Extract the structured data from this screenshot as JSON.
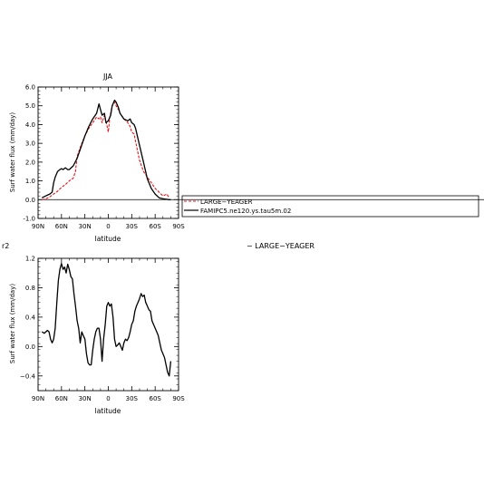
{
  "chart_data": [
    {
      "type": "line",
      "title": "JJA",
      "xlabel": "latitude",
      "ylabel": "Surf water flux (mm/day)",
      "xlim": [
        90,
        -90
      ],
      "ylim": [
        -1.0,
        6.0
      ],
      "x_ticks": [
        90,
        60,
        30,
        0,
        -30,
        -60,
        -90
      ],
      "x_tick_labels": [
        "90N",
        "60N",
        "30N",
        "0",
        "30S",
        "60S",
        "90S"
      ],
      "y_ticks": [
        -1,
        0,
        1,
        2,
        3,
        4,
        5,
        6
      ],
      "y_tick_labels": [
        "-1.0",
        "0.0",
        "1.0",
        "2.0",
        "3.0",
        "4.0",
        "5.0",
        "6.0"
      ],
      "zero_line": true,
      "legend": {
        "placement": "right",
        "entries": [
          "LARGE−YEAGER",
          "FAMIPC5.ne120.ys.tau5m.02"
        ]
      },
      "series": [
        {
          "name": "LARGE−YEAGER",
          "color": "#e8141a",
          "dash": "dashed",
          "x": [
            85,
            80,
            75,
            70,
            65,
            60,
            55,
            50,
            45,
            42,
            40,
            35,
            30,
            25,
            20,
            15,
            12,
            10,
            8,
            5,
            3,
            0,
            -2,
            -5,
            -8,
            -10,
            -13,
            -15,
            -20,
            -25,
            -28,
            -30,
            -33,
            -35,
            -40,
            -45,
            -50,
            -55,
            -60,
            -65,
            -70,
            -75,
            -78
          ],
          "y": [
            0.0,
            0.05,
            0.15,
            0.3,
            0.45,
            0.65,
            0.8,
            1.0,
            1.15,
            1.5,
            2.3,
            2.9,
            3.4,
            3.8,
            4.1,
            4.4,
            4.3,
            4.4,
            4.1,
            4.5,
            4.2,
            3.6,
            4.4,
            5.0,
            5.2,
            5.0,
            4.8,
            4.6,
            4.3,
            4.1,
            3.9,
            3.6,
            3.5,
            3.1,
            2.1,
            1.5,
            1.2,
            0.9,
            0.6,
            0.4,
            0.2,
            0.3,
            0.1
          ]
        },
        {
          "name": "FAMIPC5.ne120.ys.tau5m.02",
          "color": "#000000",
          "dash": "solid",
          "x": [
            85,
            80,
            75,
            72,
            70,
            68,
            65,
            62,
            60,
            58,
            55,
            52,
            50,
            45,
            40,
            35,
            30,
            25,
            20,
            15,
            12,
            10,
            8,
            5,
            3,
            0,
            -3,
            -5,
            -8,
            -10,
            -13,
            -15,
            -20,
            -25,
            -28,
            -30,
            -33,
            -35,
            -40,
            -45,
            -50,
            -55,
            -60,
            -65,
            -70,
            -75,
            -78,
            -80
          ],
          "y": [
            0.1,
            0.2,
            0.3,
            0.4,
            0.9,
            1.2,
            1.5,
            1.6,
            1.65,
            1.6,
            1.7,
            1.6,
            1.6,
            1.8,
            2.2,
            2.8,
            3.4,
            3.9,
            4.3,
            4.6,
            5.1,
            4.8,
            4.5,
            4.6,
            4.1,
            4.2,
            4.5,
            5.0,
            5.3,
            5.2,
            4.9,
            4.6,
            4.3,
            4.2,
            4.3,
            4.1,
            4.0,
            3.8,
            2.9,
            2.0,
            1.1,
            0.6,
            0.3,
            0.1,
            0.05,
            0.02,
            0.0,
            0.0
          ]
        }
      ]
    },
    {
      "type": "line",
      "title_fragment": "r2",
      "title": "− LARGE−YEAGER",
      "xlabel": "latitude",
      "ylabel": "Surf water flux (mm/day)",
      "xlim": [
        90,
        -90
      ],
      "ylim": [
        -0.6,
        1.2
      ],
      "x_ticks": [
        90,
        60,
        30,
        0,
        -30,
        -60,
        -90
      ],
      "x_tick_labels": [
        "90N",
        "60N",
        "30N",
        "0",
        "30S",
        "60S",
        "90S"
      ],
      "y_ticks": [
        -0.4,
        0.0,
        0.4,
        0.8,
        1.2
      ],
      "y_tick_labels": [
        "−0.4",
        "0.0",
        "0.4",
        "0.8",
        "1.2"
      ],
      "series": [
        {
          "name": "",
          "color": "#000000",
          "dash": "solid",
          "x": [
            85,
            82,
            80,
            78,
            76,
            74,
            72,
            70,
            68,
            66,
            64,
            62,
            60,
            58,
            56,
            54,
            52,
            50,
            48,
            46,
            44,
            42,
            40,
            38,
            36,
            34,
            32,
            30,
            28,
            26,
            24,
            22,
            20,
            18,
            16,
            14,
            12,
            10,
            8,
            6,
            4,
            2,
            0,
            -2,
            -4,
            -6,
            -8,
            -10,
            -12,
            -14,
            -16,
            -18,
            -20,
            -22,
            -24,
            -26,
            -28,
            -30,
            -32,
            -34,
            -36,
            -38,
            -40,
            -42,
            -44,
            -46,
            -48,
            -50,
            -52,
            -54,
            -56,
            -58,
            -60,
            -62,
            -64,
            -66,
            -68,
            -70,
            -72,
            -74,
            -76,
            -78,
            -80
          ],
          "y": [
            0.2,
            0.18,
            0.2,
            0.22,
            0.2,
            0.1,
            0.05,
            0.1,
            0.25,
            0.6,
            0.9,
            1.05,
            1.13,
            1.05,
            1.08,
            1.0,
            1.12,
            1.05,
            0.95,
            0.92,
            0.72,
            0.55,
            0.35,
            0.25,
            0.05,
            0.2,
            0.15,
            0.1,
            -0.1,
            -0.22,
            -0.25,
            -0.25,
            -0.05,
            0.1,
            0.2,
            0.25,
            0.25,
            0.1,
            -0.2,
            0.1,
            0.3,
            0.55,
            0.6,
            0.55,
            0.58,
            0.4,
            0.1,
            0.0,
            0.02,
            0.05,
            0.0,
            -0.05,
            0.05,
            0.1,
            0.08,
            0.12,
            0.2,
            0.3,
            0.35,
            0.48,
            0.55,
            0.6,
            0.65,
            0.72,
            0.68,
            0.7,
            0.6,
            0.55,
            0.5,
            0.48,
            0.35,
            0.3,
            0.25,
            0.2,
            0.15,
            0.05,
            -0.05,
            -0.1,
            -0.15,
            -0.25,
            -0.35,
            -0.4,
            -0.2
          ]
        }
      ]
    }
  ]
}
